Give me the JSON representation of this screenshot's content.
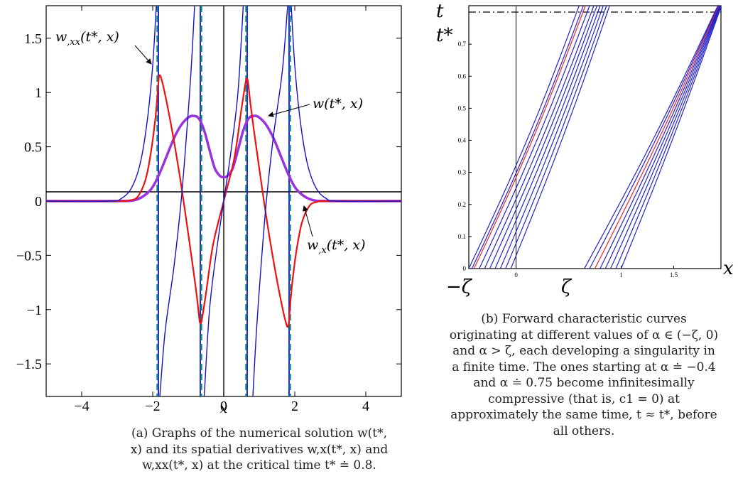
{
  "chart_data": [
    {
      "type": "line",
      "panel": "(a)",
      "xlabel": "x",
      "xlim": [
        -5,
        5
      ],
      "ylim": [
        -1.8,
        1.8
      ],
      "x_ticks": [
        "−4",
        "−2",
        "0",
        "2",
        "4"
      ],
      "x_tick_values": [
        -4,
        -2,
        0,
        2,
        4
      ],
      "y_ticks": [
        "1.5",
        "1",
        "0.5",
        "0",
        "−0.5",
        "−1",
        "−1.5"
      ],
      "y_tick_values": [
        1.5,
        1,
        0.5,
        0,
        -0.5,
        -1,
        -1.5
      ],
      "series": [
        {
          "name": "w(t*, x)",
          "color": "#9933dd",
          "points": [
            [
              -5,
              0
            ],
            [
              -3,
              0
            ],
            [
              -2.5,
              0.01
            ],
            [
              -2.2,
              0.06
            ],
            [
              -2,
              0.13
            ],
            [
              -1.8,
              0.26
            ],
            [
              -1.6,
              0.42
            ],
            [
              -1.4,
              0.58
            ],
            [
              -1.2,
              0.7
            ],
            [
              -1.0,
              0.77
            ],
            [
              -0.85,
              0.785
            ],
            [
              -0.7,
              0.76
            ],
            [
              -0.55,
              0.65
            ],
            [
              -0.4,
              0.47
            ],
            [
              -0.25,
              0.3
            ],
            [
              -0.1,
              0.23
            ],
            [
              0,
              0.22
            ],
            [
              0.1,
              0.23
            ],
            [
              0.25,
              0.3
            ],
            [
              0.4,
              0.47
            ],
            [
              0.55,
              0.65
            ],
            [
              0.7,
              0.76
            ],
            [
              0.85,
              0.785
            ],
            [
              1.0,
              0.77
            ],
            [
              1.2,
              0.7
            ],
            [
              1.4,
              0.58
            ],
            [
              1.6,
              0.42
            ],
            [
              1.8,
              0.26
            ],
            [
              2,
              0.13
            ],
            [
              2.2,
              0.06
            ],
            [
              2.5,
              0.01
            ],
            [
              3,
              0
            ],
            [
              5,
              0
            ]
          ]
        },
        {
          "name": "w,x(t*, x)",
          "color": "#ee1111",
          "points": [
            [
              -5,
              0
            ],
            [
              -3,
              0
            ],
            [
              -2.6,
              0.01
            ],
            [
              -2.4,
              0.05
            ],
            [
              -2.2,
              0.2
            ],
            [
              -2.05,
              0.45
            ],
            [
              -1.93,
              0.75
            ],
            [
              -1.86,
              1.0
            ],
            [
              -1.82,
              1.15
            ],
            [
              -1.75,
              1.12
            ],
            [
              -1.6,
              0.9
            ],
            [
              -1.4,
              0.55
            ],
            [
              -1.2,
              0.15
            ],
            [
              -1.0,
              -0.3
            ],
            [
              -0.85,
              -0.65
            ],
            [
              -0.75,
              -0.9
            ],
            [
              -0.7,
              -1.05
            ],
            [
              -0.67,
              -1.12
            ],
            [
              -0.62,
              -1.1
            ],
            [
              -0.5,
              -0.85
            ],
            [
              -0.3,
              -0.4
            ],
            [
              0,
              0
            ],
            [
              0.3,
              0.4
            ],
            [
              0.5,
              0.85
            ],
            [
              0.62,
              1.1
            ],
            [
              0.67,
              1.12
            ],
            [
              0.7,
              1.05
            ],
            [
              0.75,
              0.9
            ],
            [
              0.85,
              0.65
            ],
            [
              1.0,
              0.3
            ],
            [
              1.2,
              -0.15
            ],
            [
              1.4,
              -0.55
            ],
            [
              1.6,
              -0.9
            ],
            [
              1.75,
              -1.12
            ],
            [
              1.82,
              -1.15
            ],
            [
              1.86,
              -1.0
            ],
            [
              1.93,
              -0.75
            ],
            [
              2.05,
              -0.45
            ],
            [
              2.2,
              -0.2
            ],
            [
              2.4,
              -0.05
            ],
            [
              2.6,
              -0.01
            ],
            [
              3,
              0
            ],
            [
              5,
              0
            ]
          ]
        },
        {
          "name": "w,xx(t*, x)",
          "color": "#1111cc",
          "segments": [
            [
              [
                -5,
                0
              ],
              [
                -3.2,
                0
              ],
              [
                -2.9,
                0.02
              ],
              [
                -2.6,
                0.12
              ],
              [
                -2.35,
                0.35
              ],
              [
                -2.15,
                0.75
              ],
              [
                -2.0,
                1.25
              ],
              [
                -1.9,
                1.8
              ]
            ],
            [
              [
                -1.8,
                -1.8
              ],
              [
                -1.65,
                -1.2
              ],
              [
                -1.4,
                -0.6
              ],
              [
                -1.2,
                0.0
              ],
              [
                -1.05,
                0.6
              ],
              [
                -0.92,
                1.2
              ],
              [
                -0.82,
                1.8
              ]
            ],
            [
              [
                -0.55,
                -1.8
              ],
              [
                -0.4,
                -1.0
              ],
              [
                -0.2,
                -0.45
              ],
              [
                0,
                0
              ],
              [
                0.2,
                0.45
              ],
              [
                0.4,
                1.0
              ],
              [
                0.55,
                1.8
              ]
            ],
            [
              [
                0.82,
                -1.8
              ],
              [
                0.92,
                -1.2
              ],
              [
                1.05,
                -0.6
              ],
              [
                1.2,
                0.0
              ],
              [
                1.4,
                0.6
              ],
              [
                1.65,
                1.2
              ],
              [
                1.8,
                1.8
              ]
            ],
            [
              [
                1.9,
                1.8
              ],
              [
                2.0,
                1.25
              ],
              [
                2.15,
                0.75
              ],
              [
                2.35,
                0.35
              ],
              [
                2.6,
                0.12
              ],
              [
                2.9,
                0.02
              ],
              [
                3.2,
                0
              ],
              [
                5,
                0
              ]
            ]
          ]
        },
        {
          "name": "asymptotes",
          "color": "#1111cc",
          "style": "solid",
          "x_values": [
            -1.84,
            -0.66,
            0.66,
            1.84
          ]
        },
        {
          "name": "critical-x",
          "color": "#118888",
          "style": "dashed",
          "x_values": [
            -1.87,
            -0.63,
            0.63,
            1.87
          ]
        }
      ],
      "annotations": [
        {
          "text": "w,xx(t*, x)",
          "base": "w",
          "sub": ",xx",
          "args": "(t*, x)"
        },
        {
          "text": "w(t*, x)",
          "base": "w",
          "sub": "",
          "args": "(t*, x)"
        },
        {
          "text": "w,x(t*, x)",
          "base": "w",
          "sub": ",x",
          "args": "(t*, x)"
        }
      ]
    },
    {
      "type": "line",
      "panel": "(b)",
      "xlabel": "x",
      "ylabel": "t",
      "xlim": [
        -0.45,
        1.95
      ],
      "ylim": [
        0,
        0.82
      ],
      "x_ticks": [
        "0",
        "1",
        "1.5"
      ],
      "x_tick_values": [
        0,
        1,
        1.5
      ],
      "x_special_labels": [
        {
          "text": "−ζ",
          "value": -0.45
        },
        {
          "text": "ζ",
          "value": 0.47
        }
      ],
      "y_ticks": [
        "0.1",
        "0.2",
        "0.3",
        "0.4",
        "0.5",
        "0.6",
        "0.7"
      ],
      "y_tick_values": [
        0.1,
        0.2,
        0.3,
        0.4,
        0.5,
        0.6,
        0.7
      ],
      "y_special_label": {
        "text": "t*",
        "value": 0.8
      },
      "critical_time": 0.8,
      "characteristics_left": {
        "color": "#2222cc",
        "highlight": -0.4,
        "highlight_color": "#ee2222",
        "alpha": [
          -0.45,
          -0.42,
          -0.4,
          -0.35,
          -0.3,
          -0.25,
          -0.2,
          -0.15,
          -0.1,
          -0.05
        ],
        "x_end": [
          0.6,
          0.64,
          0.66,
          0.7,
          0.74,
          0.77,
          0.8,
          0.83,
          0.86,
          0.89
        ]
      },
      "characteristics_right": {
        "color": "#2222cc",
        "highlight": 0.75,
        "highlight_color": "#ee2222",
        "alpha": [
          0.65,
          0.7,
          0.75,
          0.8,
          0.85,
          0.9,
          0.95,
          1.0
        ],
        "x_end": [
          1.92,
          1.925,
          1.93,
          1.935,
          1.94,
          1.945,
          1.95,
          1.955
        ]
      }
    }
  ],
  "figure_a": {
    "caption_label": "(a)",
    "caption": "(a) Graphs of the numerical solution w(t*, x) and its spatial derivatives w,x(t*, x) and w,xx(t*, x) at the critical time t* ≐ 0.8."
  },
  "figure_b": {
    "caption_label": "(b)",
    "caption": "(b) Forward characteristic curves originating at different values of α ∈ (−ζ, 0) and α > ζ, each developing a singularity in a finite time. The ones starting at α ≐ −0.4 and α ≐ 0.75 become infinitesimally compressive (that is, c1 = 0) at approximately the same time, t ≈ t*, before all others."
  }
}
